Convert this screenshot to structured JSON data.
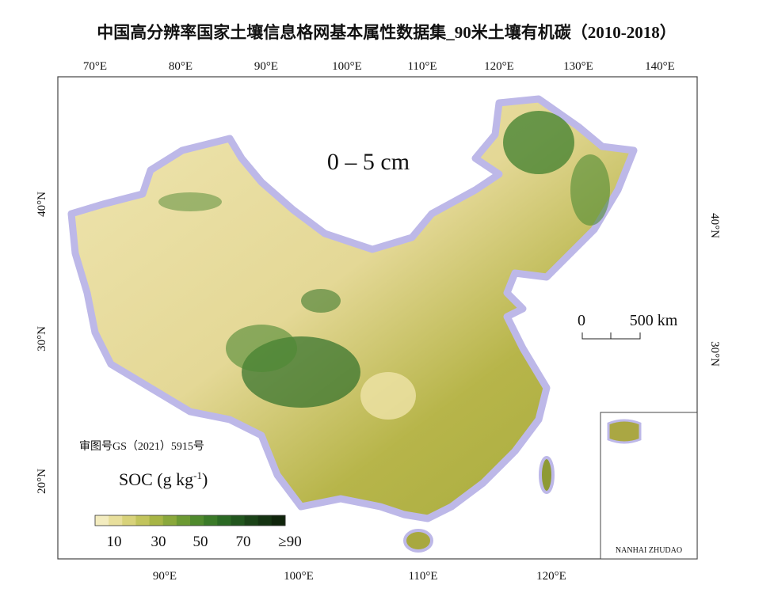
{
  "header": {
    "title": "中国高分辨率国家土壤信息格网基本属性数据集_90米土壤有机碳（2010-2018）"
  },
  "map": {
    "depth_label": "0 – 5 cm",
    "top_lon_labels": [
      "70°E",
      "80°E",
      "90°E",
      "100°E",
      "110°E",
      "120°E",
      "130°E",
      "140°E"
    ],
    "bottom_lon_labels": [
      "90°E",
      "100°E",
      "110°E",
      "120°E"
    ],
    "left_lat_labels": [
      "40°N",
      "30°N",
      "20°N"
    ],
    "right_lat_labels": [
      "40°N",
      "30°N"
    ],
    "scale_bar": {
      "start": "0",
      "end": "500 km"
    },
    "approval_number": "审图号GS（2021）5915号",
    "inset_label": "NANHAI ZHUDAO",
    "legend": {
      "title": "SOC (g kg",
      "title_exponent": "-1",
      "title_close": ")",
      "ticks": [
        "10",
        "30",
        "50",
        "70",
        "≥90"
      ]
    }
  }
}
